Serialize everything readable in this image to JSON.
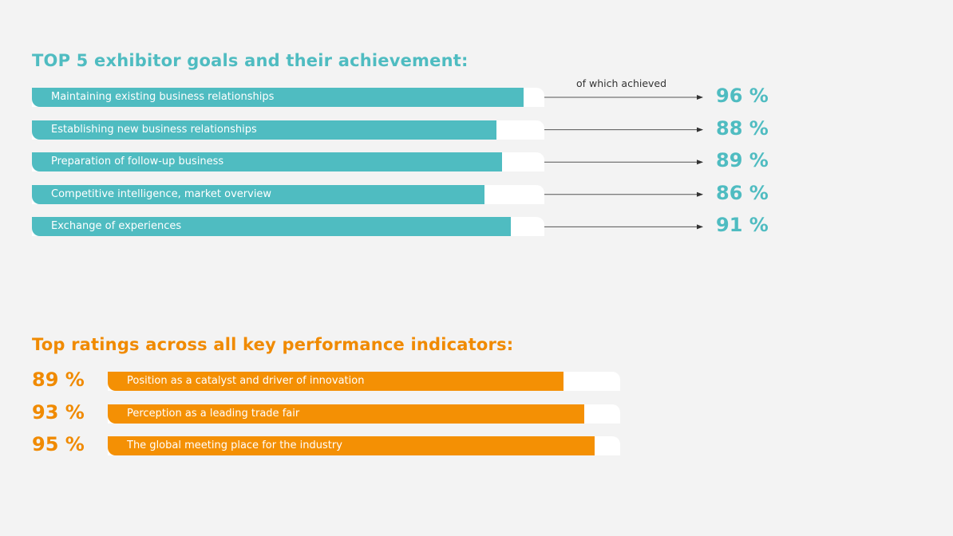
{
  "chart_data": [
    {
      "type": "bar",
      "title": "TOP 5 exhibitor goals and their achievement:",
      "annotation": "of which achieved",
      "categories": [
        "Maintaining existing business relationships",
        "Establishing new business relationships",
        "Preparation of follow-up business",
        "Competitive intelligence, market overview",
        "Exchange of experiences"
      ],
      "bar_fill_fraction": [
        0.96,
        0.907,
        0.918,
        0.883,
        0.935
      ],
      "achieved_values": [
        96,
        88,
        89,
        86,
        91
      ],
      "achieved_labels": [
        "96 %",
        "88 %",
        "89 %",
        "86 %",
        "91 %"
      ],
      "color": "#4fbcc1"
    },
    {
      "type": "bar",
      "title": "Top ratings across all key performance indicators:",
      "categories": [
        "Position as a catalyst and driver of innovation",
        "Perception as a leading trade fair",
        "The global meeting place for the industry"
      ],
      "values": [
        89,
        93,
        95
      ],
      "value_labels": [
        "89 %",
        "93 %",
        "95 %"
      ],
      "ylim": [
        0,
        100
      ],
      "color": "#f49004"
    }
  ]
}
